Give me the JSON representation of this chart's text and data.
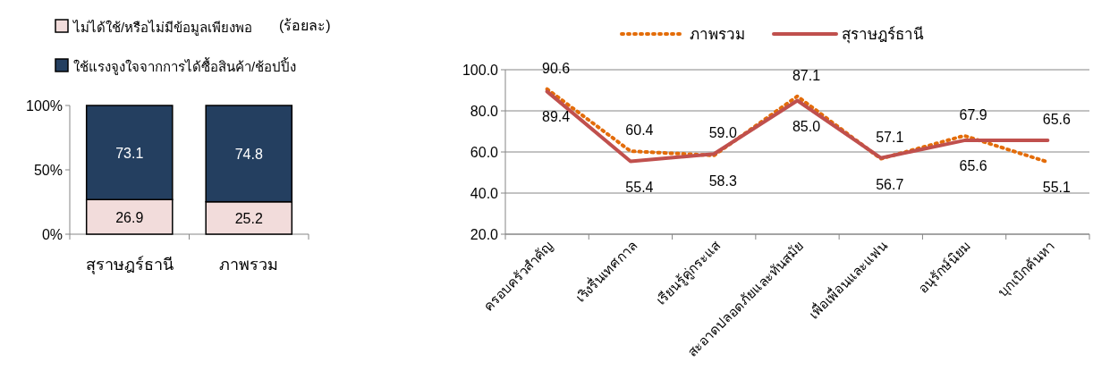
{
  "chart_data": [
    {
      "type": "bar",
      "stacked": true,
      "categories": [
        "สุราษฎร์ธานี",
        "ภาพรวม"
      ],
      "ylim": [
        0,
        100
      ],
      "yticks": [
        {
          "value": 0,
          "label": "0%"
        },
        {
          "value": 50,
          "label": "50%"
        },
        {
          "value": 100,
          "label": "100%"
        }
      ],
      "data_labels": true,
      "legend": "top left",
      "annotations": [
        "(ร้อยละ)"
      ],
      "series": [
        {
          "name": "ไม่ได้ใช้/หรือไม่มีข้อมูลเพียงพอ",
          "color": "#f2dcdb",
          "values": [
            26.9,
            25.2
          ]
        },
        {
          "name": "ใช้แรงจูงใจจากการได้ซื้อสินค้า/ช้อปปิ้ง",
          "color": "#243f60",
          "values": [
            73.1,
            74.8
          ]
        }
      ]
    },
    {
      "type": "line",
      "categories": [
        "ครอบครัวสำคัญ",
        "เริงรื่นเทศกาล",
        "เรียนรู้คู่กระแส",
        "สะอาดปลอดภัยและทันสมัย",
        "เพื่อเพื่อนและแฟน",
        "อนุรักษ์นิยม",
        "บุกเบิกค้นหา"
      ],
      "ylim": [
        20,
        100
      ],
      "yticks": [
        {
          "value": 20,
          "label": "20.0"
        },
        {
          "value": 40,
          "label": "40.0"
        },
        {
          "value": 60,
          "label": "60.0"
        },
        {
          "value": 80,
          "label": "80.0"
        },
        {
          "value": 100,
          "label": "100.0"
        }
      ],
      "grid": "y",
      "legend": "top",
      "series": [
        {
          "name": "ภาพรวม",
          "color": "#e36c09",
          "line_style": "dotted",
          "values": [
            90.6,
            60.4,
            58.3,
            87.1,
            56.7,
            67.9,
            55.1
          ],
          "value_labels": [
            "90.6",
            "60.4",
            "58.3",
            "87.1",
            "56.7",
            "67.9",
            "55.1"
          ]
        },
        {
          "name": "สุราษฎร์ธานี",
          "color": "#c0504d",
          "line_style": "solid",
          "values": [
            89.4,
            55.4,
            59.0,
            85.0,
            57.1,
            65.6,
            65.6
          ],
          "value_labels": [
            "89.4",
            "55.4",
            "59.0",
            "85.0",
            "57.1",
            "65.6",
            "65.6"
          ]
        }
      ]
    }
  ]
}
